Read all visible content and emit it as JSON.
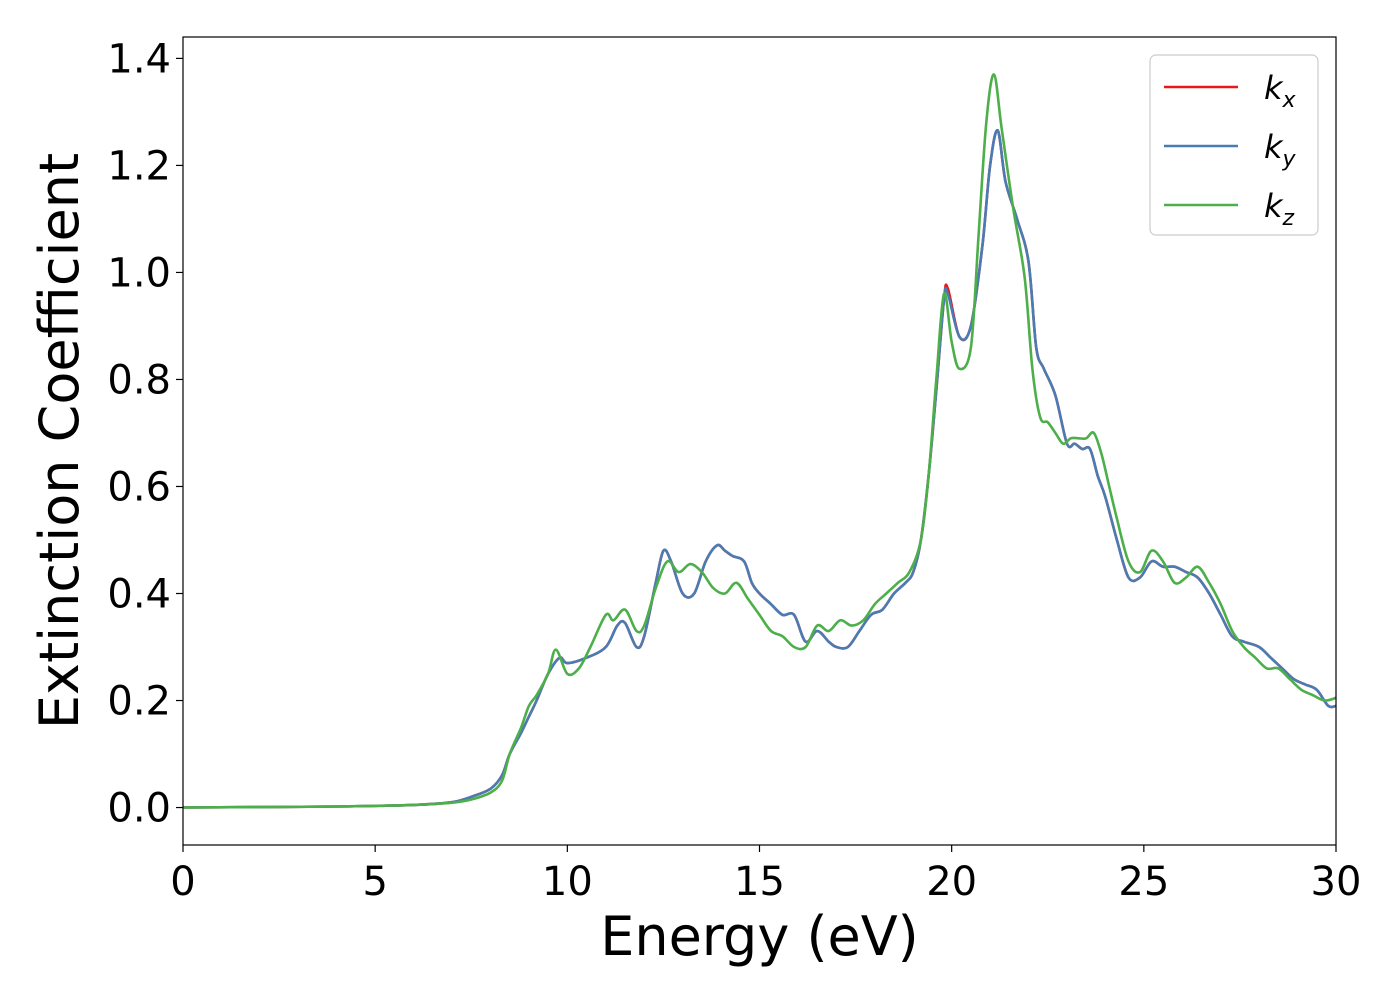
{
  "chart_data": {
    "type": "line",
    "title": "",
    "xlabel": "Energy (eV)",
    "ylabel": "Extinction Coefficient",
    "xlim": [
      0,
      30
    ],
    "ylim": [
      -0.07,
      1.44
    ],
    "xticks": [
      0,
      5,
      10,
      15,
      20,
      25,
      30
    ],
    "yticks": [
      0.0,
      0.2,
      0.4,
      0.6,
      0.8,
      1.0,
      1.2,
      1.4
    ],
    "xtick_labels": [
      "0",
      "5",
      "10",
      "15",
      "20",
      "25",
      "30"
    ],
    "ytick_labels": [
      "0.0",
      "0.2",
      "0.4",
      "0.6",
      "0.8",
      "1.0",
      "1.2",
      "1.4"
    ],
    "grid": false,
    "legend_position": "top-right",
    "series": [
      {
        "name": "k_x",
        "legend_base": "k",
        "legend_sub": "x",
        "color": "#e41a1c",
        "x": [
          0,
          4,
          6,
          7,
          7.5,
          8,
          8.3,
          8.5,
          8.8,
          9,
          9.2,
          9.5,
          9.8,
          10,
          10.5,
          11,
          11.3,
          11.5,
          11.8,
          12,
          12.3,
          12.5,
          12.7,
          13,
          13.3,
          13.6,
          13.9,
          14.1,
          14.3,
          14.6,
          14.8,
          15,
          15.3,
          15.6,
          15.9,
          16.2,
          16.5,
          16.8,
          17,
          17.3,
          17.6,
          17.9,
          18.2,
          18.5,
          18.8,
          19,
          19.2,
          19.4,
          19.6,
          19.8,
          19.9,
          20.2,
          20.5,
          20.8,
          21,
          21.2,
          21.4,
          21.7,
          22,
          22.2,
          22.4,
          22.7,
          23,
          23.2,
          23.4,
          23.6,
          23.8,
          24,
          24.3,
          24.6,
          24.9,
          25.2,
          25.5,
          25.8,
          26.1,
          26.4,
          26.7,
          27,
          27.3,
          27.6,
          28,
          28.3,
          28.6,
          28.9,
          29.2,
          29.5,
          29.8,
          30
        ],
        "y": [
          0,
          0.002,
          0.005,
          0.01,
          0.02,
          0.035,
          0.06,
          0.1,
          0.14,
          0.17,
          0.2,
          0.25,
          0.28,
          0.27,
          0.28,
          0.3,
          0.34,
          0.345,
          0.3,
          0.32,
          0.42,
          0.48,
          0.46,
          0.4,
          0.4,
          0.46,
          0.49,
          0.48,
          0.47,
          0.46,
          0.42,
          0.4,
          0.38,
          0.36,
          0.36,
          0.31,
          0.33,
          0.31,
          0.3,
          0.3,
          0.33,
          0.36,
          0.37,
          0.4,
          0.42,
          0.44,
          0.5,
          0.62,
          0.78,
          0.95,
          0.97,
          0.88,
          0.9,
          1.05,
          1.2,
          1.265,
          1.17,
          1.1,
          1.02,
          0.86,
          0.82,
          0.77,
          0.68,
          0.68,
          0.67,
          0.67,
          0.62,
          0.58,
          0.5,
          0.43,
          0.43,
          0.46,
          0.45,
          0.45,
          0.44,
          0.43,
          0.4,
          0.36,
          0.32,
          0.31,
          0.3,
          0.28,
          0.26,
          0.24,
          0.23,
          0.22,
          0.19,
          0.19
        ]
      },
      {
        "name": "k_y",
        "legend_base": "k",
        "legend_sub": "y",
        "color": "#4a7cb4",
        "x": [
          0,
          4,
          6,
          7,
          7.5,
          8,
          8.3,
          8.5,
          8.8,
          9,
          9.2,
          9.5,
          9.8,
          10,
          10.5,
          11,
          11.3,
          11.5,
          11.8,
          12,
          12.3,
          12.5,
          12.7,
          13,
          13.3,
          13.6,
          13.9,
          14.1,
          14.3,
          14.6,
          14.8,
          15,
          15.3,
          15.6,
          15.9,
          16.2,
          16.5,
          16.8,
          17,
          17.3,
          17.6,
          17.9,
          18.2,
          18.5,
          18.8,
          19,
          19.2,
          19.4,
          19.6,
          19.8,
          19.9,
          20.2,
          20.5,
          20.8,
          21,
          21.2,
          21.4,
          21.7,
          22,
          22.2,
          22.4,
          22.7,
          23,
          23.2,
          23.4,
          23.6,
          23.8,
          24,
          24.3,
          24.6,
          24.9,
          25.2,
          25.5,
          25.8,
          26.1,
          26.4,
          26.7,
          27,
          27.3,
          27.6,
          28,
          28.3,
          28.6,
          28.9,
          29.2,
          29.5,
          29.8,
          30
        ],
        "y": [
          0,
          0.002,
          0.005,
          0.01,
          0.02,
          0.035,
          0.06,
          0.1,
          0.14,
          0.17,
          0.2,
          0.25,
          0.28,
          0.27,
          0.28,
          0.3,
          0.34,
          0.345,
          0.3,
          0.32,
          0.42,
          0.48,
          0.46,
          0.4,
          0.4,
          0.46,
          0.49,
          0.48,
          0.47,
          0.46,
          0.42,
          0.4,
          0.38,
          0.36,
          0.36,
          0.31,
          0.33,
          0.31,
          0.3,
          0.3,
          0.33,
          0.36,
          0.37,
          0.4,
          0.42,
          0.44,
          0.5,
          0.62,
          0.78,
          0.95,
          0.96,
          0.88,
          0.9,
          1.05,
          1.2,
          1.265,
          1.17,
          1.1,
          1.02,
          0.86,
          0.82,
          0.77,
          0.68,
          0.68,
          0.67,
          0.67,
          0.62,
          0.58,
          0.5,
          0.43,
          0.43,
          0.46,
          0.45,
          0.45,
          0.44,
          0.43,
          0.4,
          0.36,
          0.32,
          0.31,
          0.3,
          0.28,
          0.26,
          0.24,
          0.23,
          0.22,
          0.19,
          0.19
        ]
      },
      {
        "name": "k_z",
        "legend_base": "k",
        "legend_sub": "z",
        "color": "#4daf4a",
        "x": [
          0,
          4,
          6,
          7,
          7.5,
          8,
          8.3,
          8.5,
          8.8,
          9,
          9.2,
          9.5,
          9.7,
          10,
          10.3,
          10.6,
          11,
          11.2,
          11.5,
          11.8,
          12,
          12.3,
          12.6,
          12.9,
          13.2,
          13.5,
          13.8,
          14.1,
          14.4,
          14.7,
          15,
          15.3,
          15.6,
          15.9,
          16.2,
          16.5,
          16.8,
          17.1,
          17.4,
          17.7,
          18,
          18.3,
          18.6,
          18.9,
          19.2,
          19.4,
          19.6,
          19.8,
          20,
          20.2,
          20.5,
          20.7,
          20.9,
          21.1,
          21.3,
          21.6,
          21.9,
          22.1,
          22.3,
          22.5,
          22.7,
          22.9,
          23.1,
          23.3,
          23.5,
          23.7,
          23.9,
          24.1,
          24.3,
          24.6,
          24.9,
          25.2,
          25.5,
          25.8,
          26.1,
          26.4,
          26.7,
          27,
          27.3,
          27.6,
          27.9,
          28.2,
          28.5,
          28.8,
          29.1,
          29.4,
          29.7,
          30
        ],
        "y": [
          0,
          0.002,
          0.005,
          0.009,
          0.015,
          0.028,
          0.05,
          0.1,
          0.15,
          0.19,
          0.21,
          0.25,
          0.295,
          0.25,
          0.26,
          0.3,
          0.36,
          0.35,
          0.37,
          0.33,
          0.34,
          0.41,
          0.46,
          0.44,
          0.455,
          0.44,
          0.41,
          0.4,
          0.42,
          0.39,
          0.36,
          0.33,
          0.32,
          0.3,
          0.3,
          0.34,
          0.33,
          0.35,
          0.34,
          0.35,
          0.38,
          0.4,
          0.42,
          0.44,
          0.5,
          0.62,
          0.8,
          0.96,
          0.87,
          0.82,
          0.86,
          1.07,
          1.28,
          1.37,
          1.27,
          1.12,
          0.99,
          0.82,
          0.73,
          0.72,
          0.7,
          0.68,
          0.69,
          0.69,
          0.69,
          0.7,
          0.66,
          0.6,
          0.54,
          0.46,
          0.44,
          0.48,
          0.46,
          0.42,
          0.43,
          0.45,
          0.42,
          0.38,
          0.33,
          0.3,
          0.28,
          0.26,
          0.26,
          0.24,
          0.22,
          0.21,
          0.2,
          0.205
        ]
      }
    ]
  }
}
